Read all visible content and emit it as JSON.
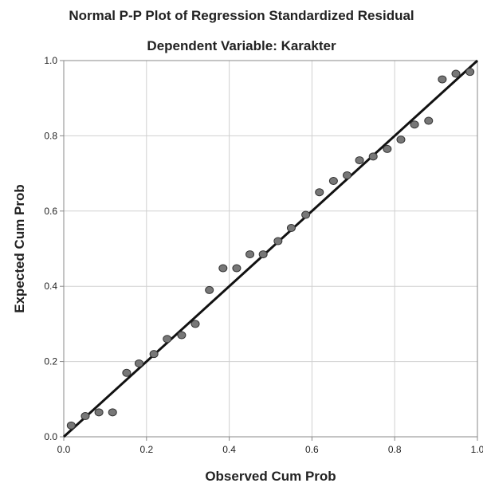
{
  "chart_data": {
    "type": "scatter",
    "title": "Normal P-P Plot of Regression Standardized Residual",
    "subtitle": "Dependent Variable: Karakter",
    "xlabel": "Observed Cum Prob",
    "ylabel": "Expected Cum Prob",
    "xlim": [
      0,
      1
    ],
    "ylim": [
      0,
      1
    ],
    "xticks": [
      "0.0",
      "0.2",
      "0.4",
      "0.6",
      "0.8",
      "1.0"
    ],
    "yticks": [
      "0.0",
      "0.2",
      "0.4",
      "0.6",
      "0.8",
      "1.0"
    ],
    "grid": true,
    "reference_line": [
      [
        0,
        0
      ],
      [
        1,
        1
      ]
    ],
    "colors": {
      "point": "#777777",
      "point_stroke": "#333333",
      "line": "#111111",
      "grid": "#d0d0d0",
      "axis": "#888888"
    },
    "series": [
      {
        "x": [
          0.018,
          0.052,
          0.085,
          0.118,
          0.152,
          0.182,
          0.218,
          0.25,
          0.285,
          0.318,
          0.352,
          0.385,
          0.418,
          0.45,
          0.482,
          0.518,
          0.55,
          0.585,
          0.618,
          0.652,
          0.685,
          0.715,
          0.748,
          0.782,
          0.815,
          0.848,
          0.882,
          0.915,
          0.948,
          0.982
        ],
        "y": [
          0.03,
          0.055,
          0.065,
          0.065,
          0.17,
          0.195,
          0.22,
          0.26,
          0.27,
          0.3,
          0.39,
          0.448,
          0.448,
          0.485,
          0.485,
          0.52,
          0.555,
          0.59,
          0.65,
          0.68,
          0.695,
          0.735,
          0.745,
          0.765,
          0.79,
          0.83,
          0.84,
          0.95,
          0.965,
          0.97
        ]
      }
    ]
  }
}
